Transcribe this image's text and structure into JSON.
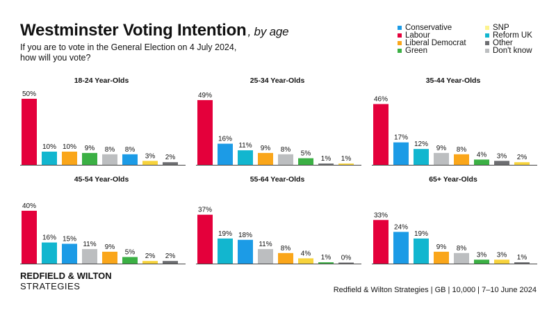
{
  "header": {
    "title": "Westminster Voting Intention",
    "subtitle": ", by age",
    "question_line1": "If you are to vote in the General Election on 4 July 2024,",
    "question_line2": "how will you vote?"
  },
  "legend": [
    {
      "name": "Conservative",
      "color": "#1c9be6"
    },
    {
      "name": "Labour",
      "color": "#e4003b"
    },
    {
      "name": "Liberal Democrat",
      "color": "#faa61a"
    },
    {
      "name": "Green",
      "color": "#3bb044"
    },
    {
      "name": "SNP",
      "color": "#fdf38e"
    },
    {
      "name": "Reform UK",
      "color": "#12b6cf"
    },
    {
      "name": "Other",
      "color": "#6d6e71"
    },
    {
      "name": "Don't know",
      "color": "#bcbec0"
    }
  ],
  "brand": {
    "line1": "REDFIELD & WILTON",
    "line2": "STRATEGIES"
  },
  "source": "Redfield & Wilton Strategies | GB | 10,000 | 7–10 June 2024",
  "chart_data": [
    {
      "type": "bar",
      "title": "18-24 Year-Olds",
      "categories": [
        "Labour",
        "Reform UK",
        "Liberal Democrat",
        "Green",
        "Don't know",
        "Conservative",
        "SNP",
        "Other"
      ],
      "values": [
        50,
        10,
        10,
        9,
        8,
        8,
        3,
        2
      ],
      "labels": [
        "50%",
        "10%",
        "10%",
        "9%",
        "8%",
        "8%",
        "3%",
        "2%"
      ],
      "colors": [
        "#e4003b",
        "#12b6cf",
        "#faa61a",
        "#3bb044",
        "#bcbec0",
        "#1c9be6",
        "#f7d33c",
        "#6d6e71"
      ]
    },
    {
      "type": "bar",
      "title": "25-34 Year-Olds",
      "categories": [
        "Labour",
        "Conservative",
        "Reform UK",
        "Liberal Democrat",
        "Don't know",
        "Green",
        "Other",
        "SNP"
      ],
      "values": [
        49,
        16,
        11,
        9,
        8,
        5,
        1,
        1
      ],
      "labels": [
        "49%",
        "16%",
        "11%",
        "9%",
        "8%",
        "5%",
        "1%",
        "1%"
      ],
      "colors": [
        "#e4003b",
        "#1c9be6",
        "#12b6cf",
        "#faa61a",
        "#bcbec0",
        "#3bb044",
        "#6d6e71",
        "#f7d33c"
      ]
    },
    {
      "type": "bar",
      "title": "35-44 Year-Olds",
      "categories": [
        "Labour",
        "Conservative",
        "Reform UK",
        "Don't know",
        "Liberal Democrat",
        "Green",
        "Other",
        "SNP"
      ],
      "values": [
        46,
        17,
        12,
        9,
        8,
        4,
        3,
        2
      ],
      "labels": [
        "46%",
        "17%",
        "12%",
        "9%",
        "8%",
        "4%",
        "3%",
        "2%"
      ],
      "colors": [
        "#e4003b",
        "#1c9be6",
        "#12b6cf",
        "#bcbec0",
        "#faa61a",
        "#3bb044",
        "#6d6e71",
        "#f7d33c"
      ]
    },
    {
      "type": "bar",
      "title": "45-54 Year-Olds",
      "categories": [
        "Labour",
        "Reform UK",
        "Conservative",
        "Don't know",
        "Liberal Democrat",
        "Green",
        "SNP",
        "Other"
      ],
      "values": [
        40,
        16,
        15,
        11,
        9,
        5,
        2,
        2
      ],
      "labels": [
        "40%",
        "16%",
        "15%",
        "11%",
        "9%",
        "5%",
        "2%",
        "2%"
      ],
      "colors": [
        "#e4003b",
        "#12b6cf",
        "#1c9be6",
        "#bcbec0",
        "#faa61a",
        "#3bb044",
        "#f7d33c",
        "#6d6e71"
      ]
    },
    {
      "type": "bar",
      "title": "55-64 Year-Olds",
      "categories": [
        "Labour",
        "Reform UK",
        "Conservative",
        "Don't know",
        "Liberal Democrat",
        "SNP",
        "Green",
        "Other"
      ],
      "values": [
        37,
        19,
        18,
        11,
        8,
        4,
        1,
        0
      ],
      "labels": [
        "37%",
        "19%",
        "18%",
        "11%",
        "8%",
        "4%",
        "1%",
        "0%"
      ],
      "colors": [
        "#e4003b",
        "#12b6cf",
        "#1c9be6",
        "#bcbec0",
        "#faa61a",
        "#f7d33c",
        "#3bb044",
        "#6d6e71"
      ]
    },
    {
      "type": "bar",
      "title": "65+ Year-Olds",
      "categories": [
        "Labour",
        "Conservative",
        "Reform UK",
        "Liberal Democrat",
        "Don't know",
        "Green",
        "SNP",
        "Other"
      ],
      "values": [
        33,
        24,
        19,
        9,
        8,
        3,
        3,
        1
      ],
      "labels": [
        "33%",
        "24%",
        "19%",
        "9%",
        "8%",
        "3%",
        "3%",
        "1%"
      ],
      "colors": [
        "#e4003b",
        "#1c9be6",
        "#12b6cf",
        "#faa61a",
        "#bcbec0",
        "#3bb044",
        "#f7d33c",
        "#6d6e71"
      ]
    }
  ]
}
